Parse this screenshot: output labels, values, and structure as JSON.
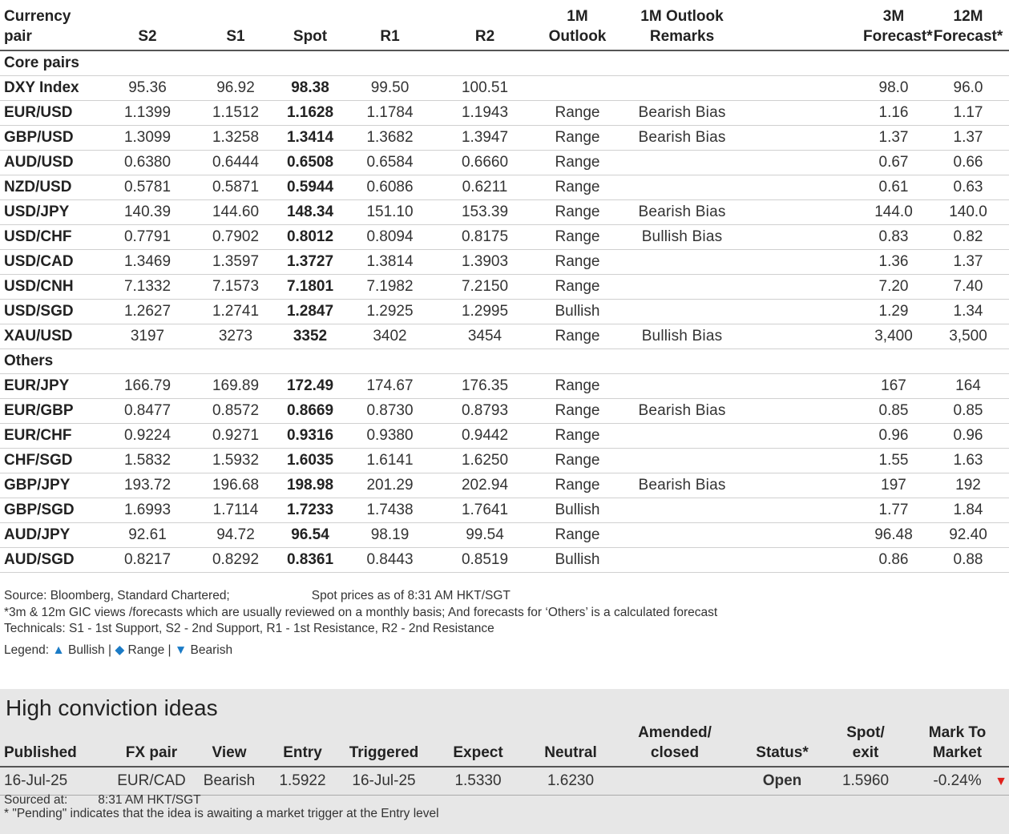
{
  "headers": {
    "pair": [
      "Currency",
      "pair"
    ],
    "s2": "S2",
    "s1": "S1",
    "spot": "Spot",
    "r1": "R1",
    "r2": "R2",
    "outlook": [
      "1M",
      "Outlook"
    ],
    "remarks": [
      "1M Outlook",
      "Remarks"
    ],
    "f3m": [
      "3M",
      "Forecast*"
    ],
    "f12m": [
      "12M",
      "Forecast*"
    ]
  },
  "sections": [
    {
      "title": "Core pairs",
      "rows": [
        {
          "pair": "DXY Index",
          "s2": "95.36",
          "s1": "96.92",
          "spot": "98.38",
          "r1": "99.50",
          "r2": "100.51",
          "outlook": "",
          "remark": "",
          "f3m": "98.0",
          "f12m": "96.0"
        },
        {
          "pair": "EUR/USD",
          "s2": "1.1399",
          "s1": "1.1512",
          "spot": "1.1628",
          "r1": "1.1784",
          "r2": "1.1943",
          "outlook": "Range",
          "remark": "Bearish Bias",
          "f3m": "1.16",
          "f12m": "1.17"
        },
        {
          "pair": "GBP/USD",
          "s2": "1.3099",
          "s1": "1.3258",
          "spot": "1.3414",
          "r1": "1.3682",
          "r2": "1.3947",
          "outlook": "Range",
          "remark": "Bearish Bias",
          "f3m": "1.37",
          "f12m": "1.37"
        },
        {
          "pair": "AUD/USD",
          "s2": "0.6380",
          "s1": "0.6444",
          "spot": "0.6508",
          "r1": "0.6584",
          "r2": "0.6660",
          "outlook": "Range",
          "remark": "",
          "f3m": "0.67",
          "f12m": "0.66"
        },
        {
          "pair": "NZD/USD",
          "s2": "0.5781",
          "s1": "0.5871",
          "spot": "0.5944",
          "r1": "0.6086",
          "r2": "0.6211",
          "outlook": "Range",
          "remark": "",
          "f3m": "0.61",
          "f12m": "0.63"
        },
        {
          "pair": "USD/JPY",
          "s2": "140.39",
          "s1": "144.60",
          "spot": "148.34",
          "r1": "151.10",
          "r2": "153.39",
          "outlook": "Range",
          "remark": "Bearish Bias",
          "f3m": "144.0",
          "f12m": "140.0"
        },
        {
          "pair": "USD/CHF",
          "s2": "0.7791",
          "s1": "0.7902",
          "spot": "0.8012",
          "r1": "0.8094",
          "r2": "0.8175",
          "outlook": "Range",
          "remark": "Bullish Bias",
          "f3m": "0.83",
          "f12m": "0.82"
        },
        {
          "pair": "USD/CAD",
          "s2": "1.3469",
          "s1": "1.3597",
          "spot": "1.3727",
          "r1": "1.3814",
          "r2": "1.3903",
          "outlook": "Range",
          "remark": "",
          "f3m": "1.36",
          "f12m": "1.37"
        },
        {
          "pair": "USD/CNH",
          "s2": "7.1332",
          "s1": "7.1573",
          "spot": "7.1801",
          "r1": "7.1982",
          "r2": "7.2150",
          "outlook": "Range",
          "remark": "",
          "f3m": "7.20",
          "f12m": "7.40"
        },
        {
          "pair": "USD/SGD",
          "s2": "1.2627",
          "s1": "1.2741",
          "spot": "1.2847",
          "r1": "1.2925",
          "r2": "1.2995",
          "outlook": "Bullish",
          "remark": "",
          "f3m": "1.29",
          "f12m": "1.34"
        },
        {
          "pair": "XAU/USD",
          "s2": "3197",
          "s1": "3273",
          "spot": "3352",
          "r1": "3402",
          "r2": "3454",
          "outlook": "Range",
          "remark": "Bullish Bias",
          "f3m": "3,400",
          "f12m": "3,500"
        }
      ]
    },
    {
      "title": "Others",
      "rows": [
        {
          "pair": "EUR/JPY",
          "s2": "166.79",
          "s1": "169.89",
          "spot": "172.49",
          "r1": "174.67",
          "r2": "176.35",
          "outlook": "Range",
          "remark": "",
          "f3m": "167",
          "f12m": "164"
        },
        {
          "pair": "EUR/GBP",
          "s2": "0.8477",
          "s1": "0.8572",
          "spot": "0.8669",
          "r1": "0.8730",
          "r2": "0.8793",
          "outlook": "Range",
          "remark": "Bearish Bias",
          "f3m": "0.85",
          "f12m": "0.85"
        },
        {
          "pair": "EUR/CHF",
          "s2": "0.9224",
          "s1": "0.9271",
          "spot": "0.9316",
          "r1": "0.9380",
          "r2": "0.9442",
          "outlook": "Range",
          "remark": "",
          "f3m": "0.96",
          "f12m": "0.96"
        },
        {
          "pair": "CHF/SGD",
          "s2": "1.5832",
          "s1": "1.5932",
          "spot": "1.6035",
          "r1": "1.6141",
          "r2": "1.6250",
          "outlook": "Range",
          "remark": "",
          "f3m": "1.55",
          "f12m": "1.63"
        },
        {
          "pair": "GBP/JPY",
          "s2": "193.72",
          "s1": "196.68",
          "spot": "198.98",
          "r1": "201.29",
          "r2": "202.94",
          "outlook": "Range",
          "remark": "Bearish Bias",
          "f3m": "197",
          "f12m": "192"
        },
        {
          "pair": "GBP/SGD",
          "s2": "1.6993",
          "s1": "1.7114",
          "spot": "1.7233",
          "r1": "1.7438",
          "r2": "1.7641",
          "outlook": "Bullish",
          "remark": "",
          "f3m": "1.77",
          "f12m": "1.84"
        },
        {
          "pair": "AUD/JPY",
          "s2": "92.61",
          "s1": "94.72",
          "spot": "96.54",
          "r1": "98.19",
          "r2": "99.54",
          "outlook": "Range",
          "remark": "",
          "f3m": "96.48",
          "f12m": "92.40"
        },
        {
          "pair": "AUD/SGD",
          "s2": "0.8217",
          "s1": "0.8292",
          "spot": "0.8361",
          "r1": "0.8443",
          "r2": "0.8519",
          "outlook": "Bullish",
          "remark": "",
          "f3m": "0.86",
          "f12m": "0.88"
        }
      ]
    }
  ],
  "notes": {
    "source": "Source: Bloomberg, Standard Chartered;",
    "spot_asof": "Spot prices as of",
    "spot_time": "8:31 AM HKT/SGT",
    "line2": "*3m & 12m GIC views /forecasts which are usually reviewed on a monthly basis; And forecasts for ‘Others’ is a calculated forecast",
    "line3": "Technicals: S1 - 1st Support, S2 - 2nd Support, R1 - 1st Resistance, R2 - 2nd Resistance",
    "legend_label": "Legend:",
    "legend_bullish": "Bullish",
    "legend_range": "Range",
    "legend_bearish": "Bearish"
  },
  "hci": {
    "title": "High conviction ideas",
    "headers": {
      "published": "Published",
      "pair": "FX pair",
      "view": "View",
      "entry": "Entry",
      "triggered": "Triggered",
      "expect": "Expect",
      "neutral": "Neutral",
      "amended": [
        "Amended/",
        "closed"
      ],
      "status": "Status*",
      "spot_exit": [
        "Spot/",
        "exit"
      ],
      "mtm": [
        "Mark To",
        "Market"
      ]
    },
    "rows": [
      {
        "published": "16-Jul-25",
        "pair": "EUR/CAD",
        "view": "Bearish",
        "entry": "1.5922",
        "triggered": "16-Jul-25",
        "expect": "1.5330",
        "neutral": "1.6230",
        "amended": "",
        "status": "Open",
        "spot_exit": "1.5960",
        "mtm": "-0.24%"
      }
    ],
    "sourced_label": "Sourced at:",
    "sourced_time": "8:31 AM HKT/SGT",
    "pending_note": "* \"Pending\" indicates that the idea is awaiting a market trigger at the Entry level"
  },
  "colors": {
    "range": "#f0a500",
    "bullish": "#2a9a1f",
    "bearish": "#e0201b",
    "legend_icons": "#1b7bc6",
    "panel_bg": "#e7e7e7"
  }
}
